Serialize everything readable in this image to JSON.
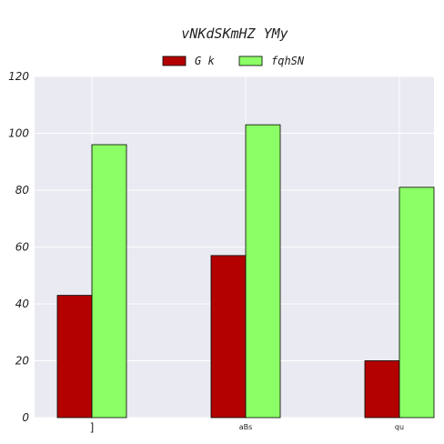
{
  "chart_data": {
    "type": "bar",
    "title": "vNKdSKmHZ YMy",
    "xlabel": "",
    "ylabel": "",
    "categories": [
      "]",
      "aBs",
      "qu"
    ],
    "series": [
      {
        "name": "G k",
        "values": [
          43,
          57,
          20
        ],
        "color": "#b30000"
      },
      {
        "name": "fqhSN",
        "values": [
          96,
          103,
          81
        ],
        "color": "#8cff66"
      }
    ],
    "ylim": [
      0,
      120
    ],
    "yticks": [
      0,
      20,
      40,
      60,
      80,
      100,
      120
    ],
    "grid": true,
    "legend_position": "top-center",
    "background_color": "#eaeaf2"
  }
}
